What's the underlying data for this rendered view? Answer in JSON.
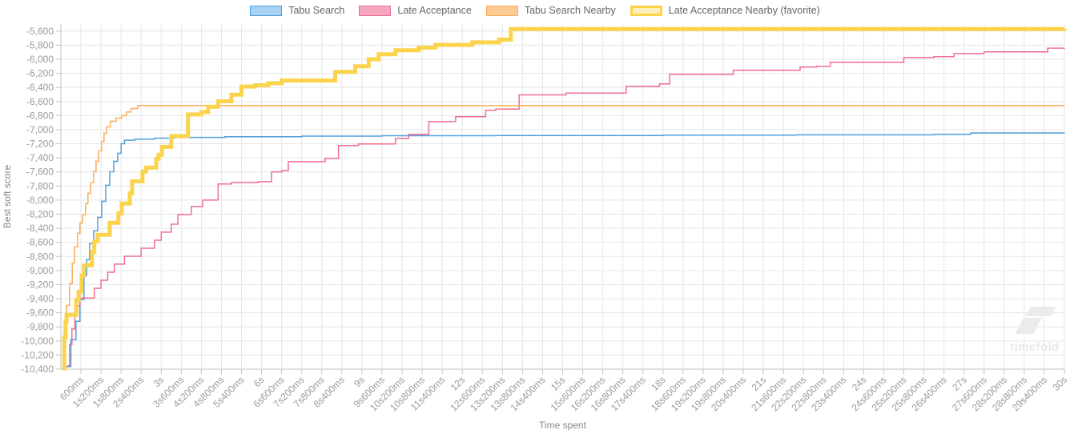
{
  "watermark": {
    "text": "timefold"
  },
  "chart_data": {
    "type": "line",
    "step": true,
    "title": "",
    "xlabel": "Time spent",
    "ylabel": "Best soft score",
    "legend_position": "top",
    "grid": true,
    "xmax": 30,
    "ylim": [
      -10400,
      -5500
    ],
    "x_tick_interval": 0.6,
    "x_tick_labels": [
      "600ms",
      "1s200ms",
      "1s800ms",
      "2s400ms",
      "3s",
      "3s600ms",
      "4s200ms",
      "4s800ms",
      "5s400ms",
      "6s",
      "6s600ms",
      "7s200ms",
      "7s800ms",
      "8s400ms",
      "9s",
      "9s600ms",
      "10s200ms",
      "10s800ms",
      "11s400ms",
      "12s",
      "12s600ms",
      "13s200ms",
      "13s800ms",
      "14s400ms",
      "15s",
      "15s600ms",
      "16s200ms",
      "16s800ms",
      "17s400ms",
      "18s",
      "18s600ms",
      "19s200ms",
      "19s800ms",
      "20s400ms",
      "21s",
      "21s600ms",
      "22s200ms",
      "22s800ms",
      "23s400ms",
      "24s",
      "24s600ms",
      "25s200ms",
      "25s800ms",
      "26s400ms",
      "27s",
      "27s600ms",
      "28s200ms",
      "28s800ms",
      "29s400ms",
      "30s"
    ],
    "y_tick_labels": [
      "-5,600",
      "-5,800",
      "-6,000",
      "-6,200",
      "-6,400",
      "-6,600",
      "-6,800",
      "-7,000",
      "-7,200",
      "-7,400",
      "-7,600",
      "-7,800",
      "-8,000",
      "-8,200",
      "-8,400",
      "-8,600",
      "-8,800",
      "-9,000",
      "-9,200",
      "-9,400",
      "-9,600",
      "-9,800",
      "-10,000",
      "-10,200",
      "-10,400"
    ],
    "colors": {
      "grid": "#e6e6e6",
      "axis": "#c2c2c2",
      "tick_text": "#999999",
      "axis_text": "#888888",
      "legend_text": "#666666",
      "watermark": "#ebebeb"
    },
    "series": [
      {
        "name": "Tabu Search",
        "line_color": "#4e9fdb",
        "legend_fill": "#a8d2f1",
        "line_width": 1.5,
        "points": [
          [
            0.15,
            -10365
          ],
          [
            0.3,
            -9980
          ],
          [
            0.45,
            -9720
          ],
          [
            0.57,
            -9413
          ],
          [
            0.69,
            -9073
          ],
          [
            0.77,
            -8846
          ],
          [
            0.86,
            -8619
          ],
          [
            0.98,
            -8437
          ],
          [
            1.1,
            -8244
          ],
          [
            1.22,
            -8017
          ],
          [
            1.34,
            -7790
          ],
          [
            1.46,
            -7597
          ],
          [
            1.58,
            -7449
          ],
          [
            1.7,
            -7335
          ],
          [
            1.8,
            -7200
          ],
          [
            1.9,
            -7150
          ],
          [
            2.2,
            -7135
          ],
          [
            2.8,
            -7120
          ],
          [
            3.4,
            -7110
          ],
          [
            4.9,
            -7100
          ],
          [
            7.2,
            -7092
          ],
          [
            9.6,
            -7086
          ],
          [
            13,
            -7082
          ],
          [
            18,
            -7078
          ],
          [
            22,
            -7074
          ],
          [
            26.1,
            -7066
          ],
          [
            27.2,
            -7046
          ],
          [
            30,
            -7045
          ]
        ]
      },
      {
        "name": "Late Acceptance",
        "line_color": "#ef6e90",
        "legend_fill": "#f7a6bf",
        "line_width": 1.5,
        "points": [
          [
            0.2,
            -10350
          ],
          [
            0.26,
            -10050
          ],
          [
            0.33,
            -9830
          ],
          [
            0.42,
            -9640
          ],
          [
            0.5,
            -9500
          ],
          [
            0.57,
            -9390
          ],
          [
            1.0,
            -9252
          ],
          [
            1.2,
            -9138
          ],
          [
            1.4,
            -9024
          ],
          [
            1.6,
            -8910
          ],
          [
            1.9,
            -8797
          ],
          [
            2.4,
            -8683
          ],
          [
            2.8,
            -8570
          ],
          [
            3.0,
            -8455
          ],
          [
            3.3,
            -8342
          ],
          [
            3.5,
            -8205
          ],
          [
            3.9,
            -8091
          ],
          [
            4.24,
            -8000
          ],
          [
            4.7,
            -7772
          ],
          [
            5.1,
            -7750
          ],
          [
            5.9,
            -7738
          ],
          [
            6.3,
            -7601
          ],
          [
            6.6,
            -7580
          ],
          [
            6.8,
            -7454
          ],
          [
            7.9,
            -7409
          ],
          [
            8.3,
            -7226
          ],
          [
            8.9,
            -7203
          ],
          [
            10.0,
            -7124
          ],
          [
            10.4,
            -7067
          ],
          [
            11.0,
            -6885
          ],
          [
            11.8,
            -6817
          ],
          [
            12.7,
            -6726
          ],
          [
            13.0,
            -6707
          ],
          [
            13.7,
            -6506
          ],
          [
            15.1,
            -6480
          ],
          [
            16.9,
            -6385
          ],
          [
            17.9,
            -6350
          ],
          [
            18.2,
            -6214
          ],
          [
            20.1,
            -6157
          ],
          [
            22.1,
            -6112
          ],
          [
            22.6,
            -6100
          ],
          [
            23.0,
            -6043
          ],
          [
            25.2,
            -5975
          ],
          [
            26.1,
            -5963
          ],
          [
            26.7,
            -5919
          ],
          [
            27.6,
            -5896
          ],
          [
            29.5,
            -5842
          ],
          [
            30,
            -5840
          ]
        ]
      },
      {
        "name": "Tabu Search Nearby",
        "line_color": "#fbad5c",
        "legend_fill": "#fccb94",
        "line_width": 1.5,
        "points": [
          [
            0.03,
            -10390
          ],
          [
            0.1,
            -9837
          ],
          [
            0.17,
            -9495
          ],
          [
            0.26,
            -9186
          ],
          [
            0.34,
            -8892
          ],
          [
            0.41,
            -8664
          ],
          [
            0.5,
            -8471
          ],
          [
            0.57,
            -8323
          ],
          [
            0.65,
            -8209
          ],
          [
            0.74,
            -8050
          ],
          [
            0.81,
            -7903
          ],
          [
            0.89,
            -7755
          ],
          [
            0.98,
            -7596
          ],
          [
            1.05,
            -7449
          ],
          [
            1.13,
            -7301
          ],
          [
            1.22,
            -7165
          ],
          [
            1.29,
            -7051
          ],
          [
            1.37,
            -6960
          ],
          [
            1.48,
            -6880
          ],
          [
            1.65,
            -6835
          ],
          [
            1.82,
            -6801
          ],
          [
            1.96,
            -6750
          ],
          [
            2.1,
            -6700
          ],
          [
            2.3,
            -6658
          ],
          [
            30,
            -6655
          ]
        ]
      },
      {
        "name": "Late Acceptance Nearby (favorite)",
        "line_color": "#fbd34d",
        "legend_fill": "#fdeebc",
        "line_width": 5,
        "points": [
          [
            0.06,
            -10390
          ],
          [
            0.1,
            -9950
          ],
          [
            0.14,
            -9722
          ],
          [
            0.17,
            -9630
          ],
          [
            0.46,
            -9415
          ],
          [
            0.53,
            -9301
          ],
          [
            0.62,
            -9073
          ],
          [
            0.69,
            -8926
          ],
          [
            0.93,
            -8733
          ],
          [
            1.0,
            -8585
          ],
          [
            1.1,
            -8494
          ],
          [
            1.46,
            -8323
          ],
          [
            1.72,
            -8187
          ],
          [
            1.82,
            -8050
          ],
          [
            2.06,
            -7903
          ],
          [
            2.13,
            -7733
          ],
          [
            2.44,
            -7596
          ],
          [
            2.54,
            -7540
          ],
          [
            2.85,
            -7415
          ],
          [
            2.92,
            -7358
          ],
          [
            3.02,
            -7244
          ],
          [
            3.3,
            -7090
          ],
          [
            3.8,
            -6783
          ],
          [
            4.2,
            -6749
          ],
          [
            4.4,
            -6673
          ],
          [
            4.7,
            -6597
          ],
          [
            5.1,
            -6503
          ],
          [
            5.4,
            -6388
          ],
          [
            5.8,
            -6370
          ],
          [
            6.2,
            -6340
          ],
          [
            6.6,
            -6301
          ],
          [
            8.2,
            -6180
          ],
          [
            8.8,
            -6100
          ],
          [
            9.2,
            -6000
          ],
          [
            9.5,
            -5930
          ],
          [
            10.0,
            -5873
          ],
          [
            10.7,
            -5835
          ],
          [
            11.2,
            -5797
          ],
          [
            12.3,
            -5760
          ],
          [
            13.1,
            -5722
          ],
          [
            13.45,
            -5570
          ],
          [
            30,
            -5565
          ]
        ]
      }
    ]
  }
}
